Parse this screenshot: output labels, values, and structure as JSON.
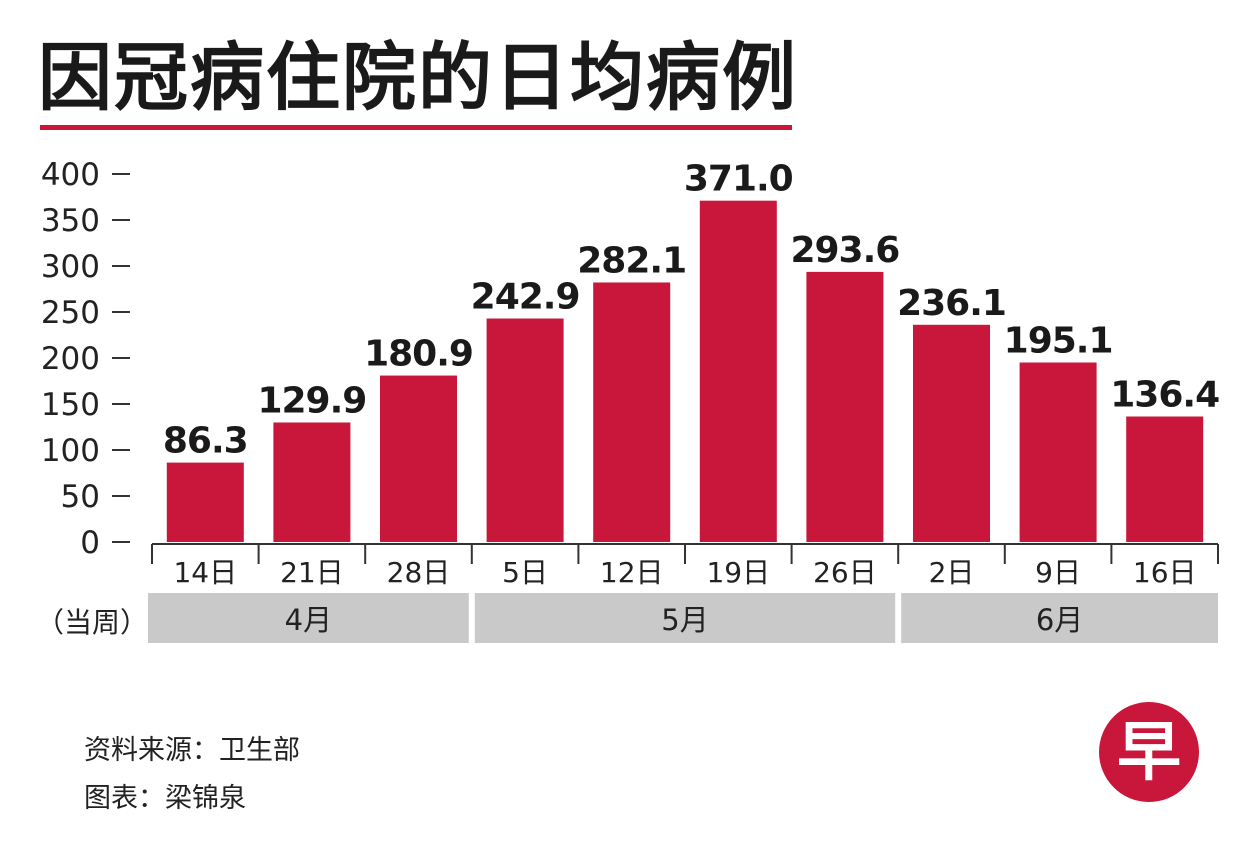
{
  "title": "因冠病住院的日均病例",
  "chart_data": {
    "type": "bar",
    "title": "因冠病住院的日均病例",
    "categories": [
      "14日",
      "21日",
      "28日",
      "5日",
      "12日",
      "19日",
      "26日",
      "2日",
      "9日",
      "16日"
    ],
    "values": [
      86.3,
      129.9,
      180.9,
      242.9,
      282.1,
      371.0,
      293.6,
      236.1,
      195.1,
      136.4
    ],
    "value_labels": [
      "86.3",
      "129.9",
      "180.9",
      "242.9",
      "282.1",
      "371.0",
      "293.6",
      "236.1",
      "195.1",
      "136.4"
    ],
    "ylim": [
      0,
      400
    ],
    "yticks": [
      "0",
      "50",
      "100",
      "150",
      "200",
      "250",
      "300",
      "350",
      "400"
    ],
    "x_group_label": "（当周）",
    "months": [
      {
        "label": "4月",
        "count": 3
      },
      {
        "label": "5月",
        "count": 4
      },
      {
        "label": "6月",
        "count": 3
      }
    ],
    "bar_color": "#c8173a",
    "grid": false
  },
  "footer": {
    "source": "资料来源：卫生部",
    "credit": "图表：梁锦泉"
  },
  "logo": {
    "char": "早",
    "icon": "zaobao-logo-icon",
    "color": "#c8173a"
  }
}
